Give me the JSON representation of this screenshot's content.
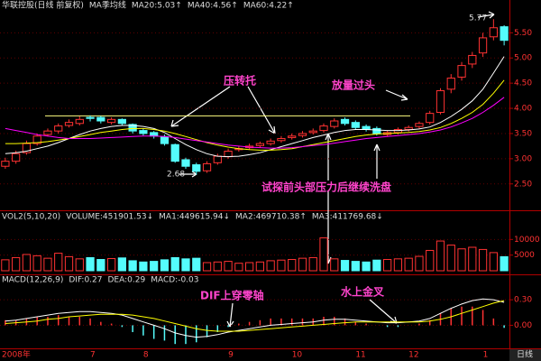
{
  "chart_data": [
    {
      "type": "candlestick",
      "title": "华联控股(日线 前复权)",
      "subtitle": "MA季均线",
      "categories": [
        "2008年",
        null,
        null,
        null,
        null,
        null,
        null,
        null,
        "7",
        null,
        null,
        null,
        null,
        "8",
        null,
        null,
        null,
        null,
        null,
        null,
        null,
        "9",
        null,
        null,
        null,
        null,
        null,
        "10",
        null,
        null,
        null,
        null,
        null,
        "11",
        null,
        null,
        null,
        null,
        "12",
        null,
        null,
        null,
        null,
        null,
        null,
        "1",
        null,
        null
      ],
      "open": [
        2.85,
        2.95,
        3.12,
        3.3,
        3.48,
        3.55,
        3.66,
        3.7,
        3.82,
        3.82,
        3.72,
        3.78,
        3.68,
        3.56,
        3.52,
        3.44,
        3.28,
        2.98,
        2.88,
        2.76,
        2.92,
        3.04,
        3.18,
        3.22,
        3.26,
        3.3,
        3.36,
        3.42,
        3.46,
        3.52,
        3.56,
        3.64,
        3.78,
        3.72,
        3.64,
        3.6,
        3.48,
        3.52,
        3.58,
        3.64,
        3.72,
        3.92,
        4.38,
        4.62,
        4.88,
        5.1,
        5.42,
        5.62
      ],
      "high": [
        3.02,
        3.16,
        3.36,
        3.5,
        3.6,
        3.7,
        3.78,
        3.84,
        3.86,
        3.85,
        3.82,
        3.8,
        3.7,
        3.6,
        3.55,
        3.48,
        3.3,
        3.02,
        2.92,
        2.95,
        3.1,
        3.2,
        3.25,
        3.3,
        3.34,
        3.4,
        3.45,
        3.5,
        3.55,
        3.6,
        3.7,
        3.8,
        3.82,
        3.76,
        3.68,
        3.64,
        3.56,
        3.62,
        3.66,
        3.74,
        3.95,
        4.4,
        4.68,
        4.92,
        5.12,
        5.5,
        5.77,
        5.65
      ],
      "low": [
        2.8,
        2.9,
        3.08,
        3.26,
        3.44,
        3.5,
        3.62,
        3.66,
        3.74,
        3.7,
        3.68,
        3.66,
        3.5,
        3.46,
        3.4,
        3.26,
        2.92,
        2.8,
        2.68,
        2.72,
        2.88,
        3.0,
        3.14,
        3.18,
        3.22,
        3.26,
        3.32,
        3.38,
        3.42,
        3.48,
        3.52,
        3.6,
        3.66,
        3.58,
        3.54,
        3.46,
        3.44,
        3.48,
        3.54,
        3.6,
        3.68,
        3.88,
        4.3,
        4.55,
        4.8,
        5.02,
        5.35,
        5.25
      ],
      "close": [
        2.95,
        3.1,
        3.3,
        3.45,
        3.55,
        3.65,
        3.72,
        3.78,
        3.8,
        3.75,
        3.78,
        3.7,
        3.55,
        3.5,
        3.45,
        3.3,
        2.95,
        2.85,
        2.75,
        2.9,
        3.05,
        3.15,
        3.2,
        3.25,
        3.3,
        3.35,
        3.4,
        3.45,
        3.5,
        3.55,
        3.65,
        3.75,
        3.7,
        3.62,
        3.58,
        3.5,
        3.52,
        3.58,
        3.62,
        3.7,
        3.9,
        4.35,
        4.6,
        4.85,
        5.05,
        5.4,
        5.6,
        5.35
      ],
      "up_color": "#ff3232",
      "down_color": "#54fcfc",
      "series": [
        {
          "name": "MA20:5.03↑",
          "color": "#ffffff",
          "values": [
            3.1,
            3.12,
            3.15,
            3.2,
            3.25,
            3.32,
            3.4,
            3.48,
            3.55,
            3.6,
            3.64,
            3.66,
            3.66,
            3.64,
            3.6,
            3.52,
            3.4,
            3.28,
            3.18,
            3.1,
            3.05,
            3.04,
            3.05,
            3.08,
            3.12,
            3.18,
            3.24,
            3.3,
            3.36,
            3.42,
            3.47,
            3.52,
            3.56,
            3.58,
            3.58,
            3.57,
            3.56,
            3.56,
            3.57,
            3.59,
            3.63,
            3.72,
            3.84,
            3.98,
            4.15,
            4.38,
            4.7,
            5.03
          ]
        },
        {
          "name": "MA40:4.56↑",
          "color": "#ffff00",
          "values": [
            3.3,
            3.3,
            3.31,
            3.32,
            3.34,
            3.37,
            3.4,
            3.44,
            3.48,
            3.52,
            3.55,
            3.58,
            3.6,
            3.6,
            3.58,
            3.55,
            3.5,
            3.44,
            3.38,
            3.32,
            3.27,
            3.23,
            3.2,
            3.18,
            3.17,
            3.17,
            3.18,
            3.2,
            3.24,
            3.28,
            3.32,
            3.36,
            3.4,
            3.44,
            3.47,
            3.49,
            3.5,
            3.51,
            3.52,
            3.54,
            3.57,
            3.62,
            3.7,
            3.8,
            3.92,
            4.08,
            4.3,
            4.56
          ]
        },
        {
          "name": "MA60:4.22↑",
          "color": "#ff00ff",
          "values": [
            3.6,
            3.56,
            3.52,
            3.48,
            3.45,
            3.42,
            3.4,
            3.4,
            3.4,
            3.41,
            3.42,
            3.43,
            3.44,
            3.45,
            3.45,
            3.44,
            3.42,
            3.39,
            3.36,
            3.33,
            3.3,
            3.27,
            3.25,
            3.23,
            3.22,
            3.21,
            3.21,
            3.22,
            3.24,
            3.26,
            3.28,
            3.31,
            3.34,
            3.37,
            3.4,
            3.42,
            3.44,
            3.46,
            3.48,
            3.5,
            3.53,
            3.57,
            3.63,
            3.71,
            3.8,
            3.92,
            4.06,
            4.22
          ]
        }
      ],
      "resistance": 3.85,
      "resistance_color": "#ffff80",
      "ylim": [
        2.03,
        5.9
      ],
      "yticks": [
        {
          "value": 2.5,
          "label": "2.50"
        },
        {
          "value": 3,
          "label": "3.00"
        },
        {
          "value": 3.5,
          "label": "3.50"
        },
        {
          "value": 4,
          "label": "4.00"
        },
        {
          "value": 4.5,
          "label": "4.50"
        },
        {
          "value": 5,
          "label": "5.00"
        },
        {
          "value": 5.5,
          "label": "5.50"
        }
      ],
      "grid": true,
      "annotations": [
        {
          "text": "5.77"
        },
        {
          "text": "2.68"
        },
        {
          "text": "压转托"
        },
        {
          "text": "放量过头"
        },
        {
          "text": "试探前头部压力后继续洗盘"
        }
      ]
    },
    {
      "type": "bar",
      "title": "VOL2(5,10,20)",
      "header": [
        {
          "text": "VOLUME:451901.53↓",
          "color": "#ffffff"
        },
        {
          "text": "MA1:449615.94↓",
          "color": "#ffffff"
        },
        {
          "text": "MA2:469710.38↑",
          "color": "#ffff00"
        },
        {
          "text": "MA3:411769.68↓",
          "color": "#ff00ff"
        }
      ],
      "values": [
        3500,
        4200,
        5200,
        4800,
        4000,
        5600,
        4500,
        3800,
        4200,
        3600,
        3900,
        4100,
        3200,
        2800,
        3000,
        3500,
        4200,
        3800,
        4000,
        2600,
        2800,
        3000,
        2400,
        2600,
        2800,
        3200,
        3400,
        3600,
        4000,
        4200,
        10500,
        3800,
        3300,
        3000,
        2800,
        3400,
        3600,
        3800,
        4000,
        4600,
        6500,
        9500,
        8200,
        7000,
        7500,
        6800,
        5800,
        4500
      ],
      "ylim": [
        0,
        15000
      ],
      "yticks": [
        5000,
        10000
      ],
      "grid": true
    },
    {
      "type": "macd",
      "title": "MACD(12,26,9)",
      "series": [
        {
          "name": "DIF:0.27",
          "color": "#ffffff",
          "values": [
            0.05,
            0.06,
            0.08,
            0.1,
            0.12,
            0.14,
            0.15,
            0.16,
            0.16,
            0.15,
            0.14,
            0.12,
            0.08,
            0.04,
            0.0,
            -0.04,
            -0.09,
            -0.12,
            -0.14,
            -0.13,
            -0.11,
            -0.08,
            -0.06,
            -0.04,
            -0.02,
            0.0,
            0.01,
            0.02,
            0.03,
            0.04,
            0.06,
            0.07,
            0.07,
            0.06,
            0.05,
            0.04,
            0.03,
            0.03,
            0.04,
            0.05,
            0.08,
            0.14,
            0.2,
            0.25,
            0.29,
            0.31,
            0.3,
            0.27
          ]
        },
        {
          "name": "DEA:0.29",
          "color": "#ffff00",
          "values": [
            0.02,
            0.03,
            0.04,
            0.05,
            0.07,
            0.08,
            0.1,
            0.11,
            0.12,
            0.13,
            0.13,
            0.13,
            0.12,
            0.1,
            0.08,
            0.05,
            0.02,
            -0.01,
            -0.04,
            -0.06,
            -0.07,
            -0.07,
            -0.07,
            -0.06,
            -0.05,
            -0.04,
            -0.03,
            -0.02,
            -0.01,
            0.0,
            0.01,
            0.02,
            0.03,
            0.04,
            0.04,
            0.04,
            0.04,
            0.04,
            0.04,
            0.04,
            0.05,
            0.07,
            0.1,
            0.14,
            0.18,
            0.22,
            0.26,
            0.29
          ]
        },
        {
          "name": "MACD:-0.03",
          "color": "#ff00ff",
          "values": [
            0.06,
            0.06,
            0.08,
            0.1,
            0.1,
            0.12,
            0.1,
            0.1,
            0.08,
            0.04,
            0.02,
            -0.02,
            -0.08,
            -0.12,
            -0.16,
            -0.18,
            -0.22,
            -0.22,
            -0.2,
            -0.14,
            -0.08,
            -0.02,
            0.02,
            0.04,
            0.06,
            0.08,
            0.08,
            0.08,
            0.08,
            0.08,
            0.1,
            0.1,
            0.08,
            0.04,
            0.02,
            0,
            -0.02,
            -0.02,
            0,
            0.02,
            0.06,
            0.14,
            0.2,
            0.22,
            0.22,
            0.18,
            0.08,
            -0.03
          ]
        }
      ],
      "up_color": "#ff3232",
      "down_color": "#54fcfc",
      "ylim": [
        -0.25,
        0.45
      ],
      "yticks": [
        {
          "value": 0,
          "label": "0.00"
        },
        {
          "value": 0.3,
          "label": "0.30"
        }
      ],
      "grid": true,
      "annotations": [
        {
          "text": "DIF上穿零轴"
        },
        {
          "text": "水上金叉"
        }
      ]
    }
  ],
  "footer_button": "日线"
}
